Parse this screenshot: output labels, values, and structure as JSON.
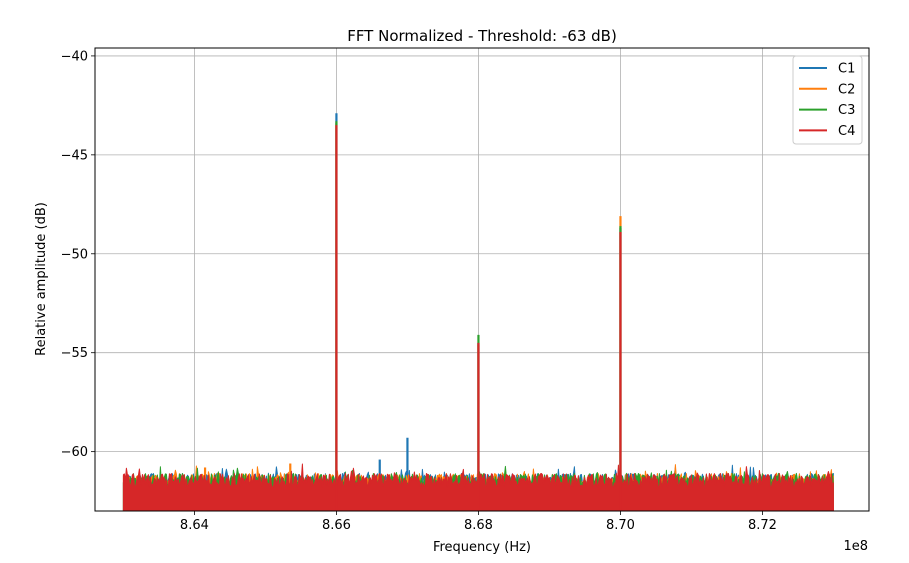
{
  "chart_data": {
    "type": "line",
    "title": "FFT Normalized - Threshold: -63 dB)",
    "xlabel": "Frequency (Hz)",
    "ylabel": "Relative amplitude (dB)",
    "x_offset_label": "1e8",
    "xlim": [
      8.626,
      8.735
    ],
    "ylim": [
      -63,
      -39.6
    ],
    "x_ticks": [
      8.64,
      8.66,
      8.68,
      8.7,
      8.72
    ],
    "x_tick_labels": [
      "8.64",
      "8.66",
      "8.68",
      "8.70",
      "8.72"
    ],
    "y_ticks": [
      -40,
      -45,
      -50,
      -55,
      -60
    ],
    "y_tick_labels": [
      "−40",
      "−45",
      "−50",
      "−55",
      "−60"
    ],
    "grid": true,
    "legend_position": "top-right",
    "x_range": [
      8.63,
      8.73
    ],
    "noise_floor_db": -61.8,
    "noise_top_db": -61.1,
    "series": [
      {
        "name": "C1",
        "color": "#1f77b4",
        "peaks": [
          {
            "x": 8.66,
            "y": -42.9
          },
          {
            "x": 8.6661,
            "y": -60.4
          },
          {
            "x": 8.67,
            "y": -59.3
          },
          {
            "x": 8.68,
            "y": -54.5
          },
          {
            "x": 8.7,
            "y": -48.7
          }
        ]
      },
      {
        "name": "C2",
        "color": "#ff7f0e",
        "peaks": [
          {
            "x": 8.66,
            "y": -43.4
          },
          {
            "x": 8.68,
            "y": -54.6
          },
          {
            "x": 8.7,
            "y": -48.1
          },
          {
            "x": 8.6415,
            "y": -60.8
          },
          {
            "x": 8.6535,
            "y": -60.6
          }
        ]
      },
      {
        "name": "C3",
        "color": "#2ca02c",
        "peaks": [
          {
            "x": 8.66,
            "y": -43.3
          },
          {
            "x": 8.68,
            "y": -54.1
          },
          {
            "x": 8.7,
            "y": -48.6
          }
        ]
      },
      {
        "name": "C4",
        "color": "#d62728",
        "peaks": [
          {
            "x": 8.66,
            "y": -43.5
          },
          {
            "x": 8.68,
            "y": -54.5
          },
          {
            "x": 8.7,
            "y": -48.9
          }
        ]
      }
    ]
  }
}
